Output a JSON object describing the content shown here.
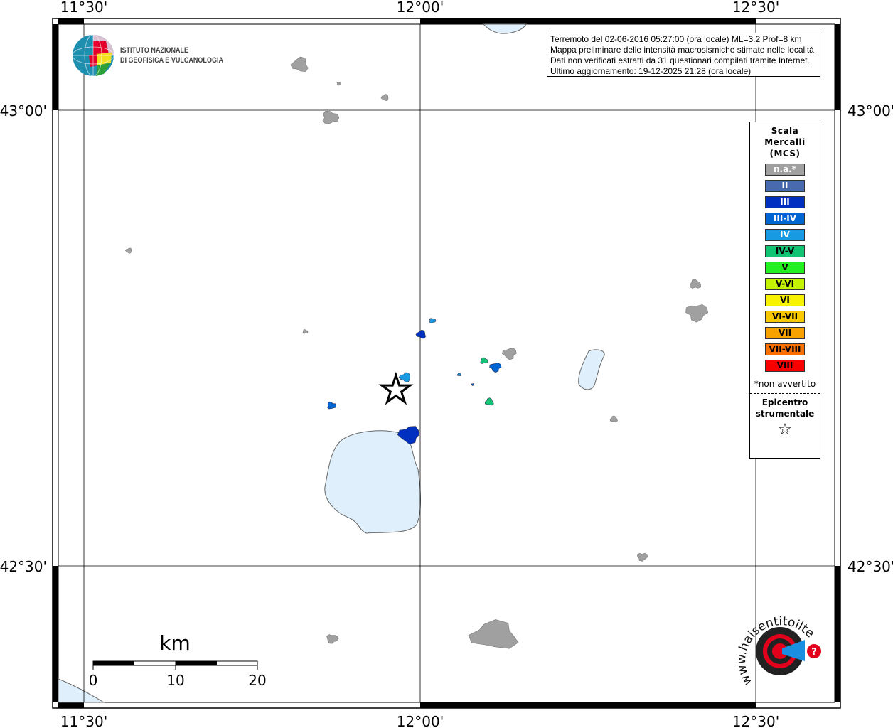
{
  "coords": {
    "lon_labels": [
      "11°30'",
      "12°00'",
      "12°30'"
    ],
    "lat_labels": [
      "43°00'",
      "42°30'"
    ]
  },
  "info_box": {
    "line1": "Terremoto del 02-06-2016 05:27:00 (ora locale) ML=3.2 Prof=8 km",
    "line2": "Mappa preliminare delle intensità macrosismiche stimate nelle località",
    "line3": "Dati non verificati estratti da 31 questionari compilati tramite Internet.",
    "line4": "Ultimo aggiornamento: 19-12-2025 21:28 (ora locale)"
  },
  "logo_ingv": {
    "line1": "ISTITUTO NAZIONALE",
    "line2": "DI GEOFISICA E VULCANOLOGIA"
  },
  "logo_hsit": {
    "text": "www.haisentitoilterremoto.it"
  },
  "legend": {
    "title": [
      "Scala",
      "Mercalli",
      "(MCS)"
    ],
    "classes": [
      {
        "label": "n.a.*",
        "color": "#a0a0a0",
        "text": "#ffffff"
      },
      {
        "label": "II",
        "color": "#4a6ab0",
        "text": "#ffffff"
      },
      {
        "label": "III",
        "color": "#0030c0",
        "text": "#ffffff"
      },
      {
        "label": "III-IV",
        "color": "#0064d2",
        "text": "#ffffff"
      },
      {
        "label": "IV",
        "color": "#189ae2",
        "text": "#ffffff"
      },
      {
        "label": "IV-V",
        "color": "#10c474",
        "text": "#000000"
      },
      {
        "label": "V",
        "color": "#22f022",
        "text": "#000000"
      },
      {
        "label": "V-VI",
        "color": "#c4f400",
        "text": "#000000"
      },
      {
        "label": "VI",
        "color": "#f8f200",
        "text": "#000000"
      },
      {
        "label": "VI-VII",
        "color": "#f8c800",
        "text": "#000000"
      },
      {
        "label": "VII",
        "color": "#f8a200",
        "text": "#000000"
      },
      {
        "label": "VII-VIII",
        "color": "#f87000",
        "text": "#000000"
      },
      {
        "label": "VIII",
        "color": "#f80000",
        "text": "#000000"
      }
    ],
    "note": "*non avvertito",
    "epicenter_title": [
      "Epicentro",
      "strumentale"
    ],
    "epicenter_symbol": "☆"
  },
  "scale_bar": {
    "unit": "km",
    "ticks": [
      "0",
      "10",
      "20"
    ]
  },
  "epicenter": {
    "lon": 11.964,
    "lat": 42.693
  },
  "localities": [
    {
      "lon": 11.822,
      "lat": 43.05,
      "mcs": "n.a.*"
    },
    {
      "lon": 11.879,
      "lat": 43.029,
      "mcs": "n.a.*"
    },
    {
      "lon": 11.948,
      "lat": 43.014,
      "mcs": "n.a.*"
    },
    {
      "lon": 11.866,
      "lat": 42.992,
      "mcs": "n.a.*"
    },
    {
      "lon": 11.567,
      "lat": 42.846,
      "mcs": "n.a.*"
    },
    {
      "lon": 11.829,
      "lat": 42.757,
      "mcs": "n.a.*"
    },
    {
      "lon": 12.133,
      "lat": 42.733,
      "mcs": "n.a.*"
    },
    {
      "lon": 12.409,
      "lat": 42.809,
      "mcs": "n.a.*"
    },
    {
      "lon": 12.411,
      "lat": 42.778,
      "mcs": "n.a.*"
    },
    {
      "lon": 12.288,
      "lat": 42.661,
      "mcs": "n.a.*"
    },
    {
      "lon": 12.33,
      "lat": 42.51,
      "mcs": "n.a.*"
    },
    {
      "lon": 12.112,
      "lat": 42.424,
      "mcs": "n.a.*"
    },
    {
      "lon": 11.869,
      "lat": 42.42,
      "mcs": "n.a.*"
    },
    {
      "lon": 12.002,
      "lat": 42.754,
      "mcs": "III"
    },
    {
      "lon": 12.018,
      "lat": 42.769,
      "mcs": "IV"
    },
    {
      "lon": 11.978,
      "lat": 42.707,
      "mcs": "IV"
    },
    {
      "lon": 11.868,
      "lat": 42.676,
      "mcs": "III-IV"
    },
    {
      "lon": 11.984,
      "lat": 42.644,
      "mcs": "III"
    },
    {
      "lon": 12.095,
      "lat": 42.725,
      "mcs": "IV-V"
    },
    {
      "lon": 12.112,
      "lat": 42.718,
      "mcs": "III-IV"
    },
    {
      "lon": 12.058,
      "lat": 42.71,
      "mcs": "IV"
    },
    {
      "lon": 12.078,
      "lat": 42.699,
      "mcs": "III-IV"
    },
    {
      "lon": 12.103,
      "lat": 42.68,
      "mcs": "IV-V"
    }
  ]
}
